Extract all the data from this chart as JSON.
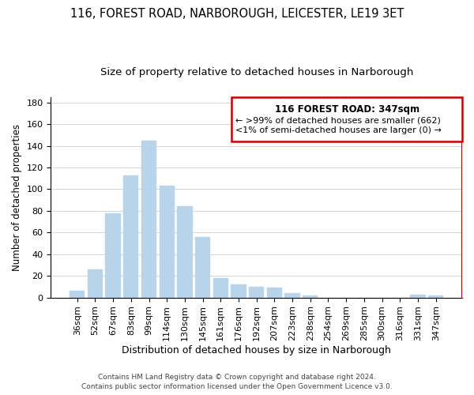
{
  "title": "116, FOREST ROAD, NARBOROUGH, LEICESTER, LE19 3ET",
  "subtitle": "Size of property relative to detached houses in Narborough",
  "xlabel": "Distribution of detached houses by size in Narborough",
  "ylabel": "Number of detached properties",
  "categories": [
    "36sqm",
    "52sqm",
    "67sqm",
    "83sqm",
    "99sqm",
    "114sqm",
    "130sqm",
    "145sqm",
    "161sqm",
    "176sqm",
    "192sqm",
    "207sqm",
    "223sqm",
    "238sqm",
    "254sqm",
    "269sqm",
    "285sqm",
    "300sqm",
    "316sqm",
    "331sqm",
    "347sqm"
  ],
  "values": [
    6,
    26,
    78,
    113,
    145,
    103,
    84,
    56,
    18,
    12,
    10,
    9,
    4,
    2,
    0,
    0,
    0,
    0,
    0,
    3,
    2
  ],
  "bar_color": "#b8d4ea",
  "annotation_text_line1": "116 FOREST ROAD: 347sqm",
  "annotation_text_line2": "← >99% of detached houses are smaller (662)",
  "annotation_text_line3": "<1% of semi-detached houses are larger (0) →",
  "annotation_border_color": "#cc0000",
  "ylim": [
    0,
    185
  ],
  "yticks": [
    0,
    20,
    40,
    60,
    80,
    100,
    120,
    140,
    160,
    180
  ],
  "title_fontsize": 10.5,
  "subtitle_fontsize": 9.5,
  "xlabel_fontsize": 9,
  "ylabel_fontsize": 8.5,
  "tick_fontsize": 8,
  "footer_line1": "Contains HM Land Registry data © Crown copyright and database right 2024.",
  "footer_line2": "Contains public sector information licensed under the Open Government Licence v3.0.",
  "background_color": "#ffffff"
}
